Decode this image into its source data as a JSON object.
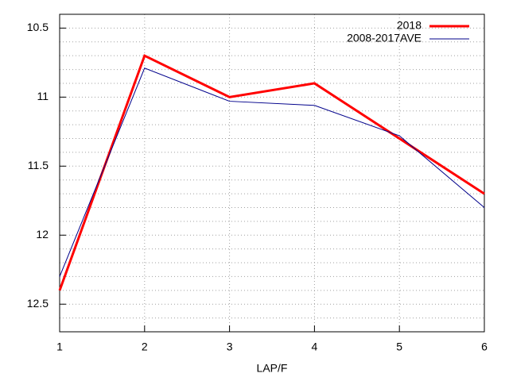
{
  "chart_data": {
    "type": "line",
    "x_label": "LAP/F",
    "x": [
      1,
      2,
      3,
      4,
      5,
      6
    ],
    "series": [
      {
        "name": "2018",
        "color": "#ff0000",
        "width": 3,
        "values": [
          12.4,
          10.7,
          11.0,
          10.9,
          11.3,
          11.7
        ]
      },
      {
        "name": "2008-2017AVE",
        "color": "#00008b",
        "width": 1,
        "values": [
          12.3,
          10.79,
          11.03,
          11.06,
          11.28,
          11.8
        ]
      }
    ],
    "xlim": [
      1,
      6
    ],
    "xticks": [
      1,
      2,
      3,
      4,
      5,
      6
    ],
    "ylim": [
      10.4,
      12.7
    ],
    "y_inverted": true,
    "yticks": [
      10.5,
      11,
      11.5,
      12,
      12.5
    ],
    "yminorticks": [
      10.6,
      10.7,
      10.8,
      10.9,
      11.1,
      11.2,
      11.3,
      11.4,
      11.6,
      11.7,
      11.8,
      11.9,
      12.1,
      12.2,
      12.3,
      12.4,
      12.6
    ],
    "grid": true,
    "legend": "top-right"
  }
}
